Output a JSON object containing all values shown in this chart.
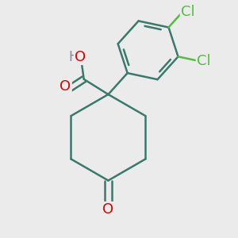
{
  "background_color": "#ebebeb",
  "bond_color": "#3a7a6a",
  "bond_width": 1.8,
  "atom_colors": {
    "O": "#dd0000",
    "Cl": "#55bb44",
    "H": "#888899",
    "C": "#3a7a6a"
  },
  "font_size_atoms": 13
}
